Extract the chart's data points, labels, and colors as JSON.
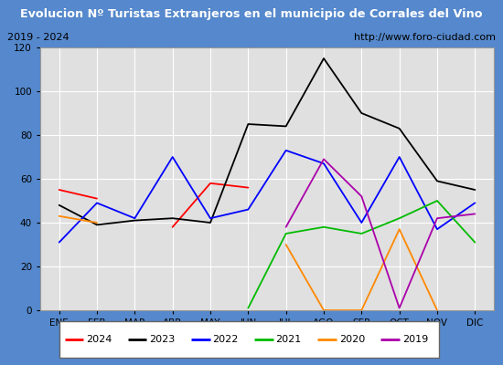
{
  "title": "Evolucion Nº Turistas Extranjeros en el municipio de Corrales del Vino",
  "subtitle_left": "2019 - 2024",
  "subtitle_right": "http://www.foro-ciudad.com",
  "months": [
    "ENE",
    "FEB",
    "MAR",
    "ABR",
    "MAY",
    "JUN",
    "JUL",
    "AGO",
    "SEP",
    "OCT",
    "NOV",
    "DIC"
  ],
  "ylim": [
    0,
    120
  ],
  "yticks": [
    0,
    20,
    40,
    60,
    80,
    100,
    120
  ],
  "series": {
    "2024": {
      "color": "#ff0000",
      "data": [
        55,
        51,
        null,
        38,
        58,
        56,
        null,
        null,
        null,
        null,
        null,
        null
      ]
    },
    "2023": {
      "color": "#000000",
      "data": [
        48,
        39,
        41,
        42,
        40,
        85,
        84,
        115,
        90,
        83,
        59,
        55
      ]
    },
    "2022": {
      "color": "#0000ff",
      "data": [
        31,
        49,
        42,
        70,
        42,
        46,
        73,
        67,
        40,
        70,
        37,
        49
      ]
    },
    "2021": {
      "color": "#00bb00",
      "data": [
        null,
        null,
        null,
        null,
        null,
        1,
        35,
        38,
        35,
        42,
        50,
        31
      ]
    },
    "2020": {
      "color": "#ff8800",
      "data": [
        43,
        40,
        null,
        null,
        null,
        null,
        30,
        0,
        0,
        37,
        0,
        null
      ]
    },
    "2019": {
      "color": "#aa00aa",
      "data": [
        null,
        null,
        null,
        null,
        null,
        null,
        38,
        69,
        52,
        1,
        42,
        44
      ]
    }
  },
  "legend_order": [
    "2024",
    "2023",
    "2022",
    "2021",
    "2020",
    "2019"
  ],
  "title_bg": "#4477cc",
  "title_color": "#ffffff",
  "subtitle_bg": "#f0f0f0",
  "plot_bg": "#e0e0e0",
  "grid_color": "#ffffff",
  "outer_bg": "#5588cc"
}
